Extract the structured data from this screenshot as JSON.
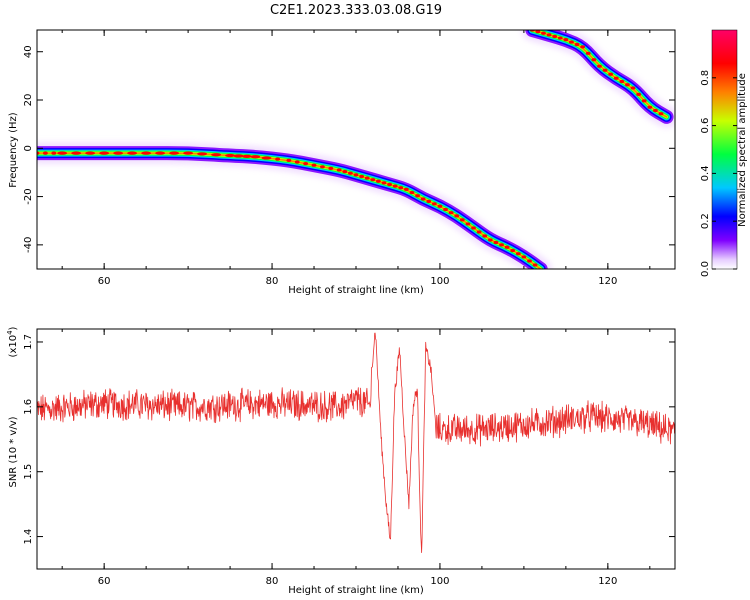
{
  "figure": {
    "title": "C2E1.2023.333.03.08.G19"
  },
  "chart_data": [
    {
      "type": "heatmap",
      "panel": "spectrogram",
      "xlabel": "Height of straight line (km)",
      "ylabel": "Frequency (Hz)",
      "xlim": [
        52,
        128
      ],
      "ylim": [
        -50,
        49
      ],
      "xticks": [
        60,
        80,
        100,
        120
      ],
      "yticks": [
        -40,
        -20,
        0,
        20,
        40
      ],
      "colorbar": {
        "label": "Normalized spectral amplitude",
        "range": [
          0,
          1
        ],
        "ticks": [
          "0.0",
          "0.2",
          "0.4",
          "0.6",
          "0.8"
        ],
        "colors": [
          "#ffffff",
          "#7f00ff",
          "#0000ff",
          "#00c8ff",
          "#00ff40",
          "#c8ff00",
          "#ff8000",
          "#ff0000",
          "#ff0066"
        ]
      },
      "tracks": [
        {
          "name": "",
          "points": [
            [
              52,
              -2
            ],
            [
              55,
              -2
            ],
            [
              60,
              -2
            ],
            [
              65,
              -2
            ],
            [
              70,
              -2
            ],
            [
              75,
              -3
            ],
            [
              78,
              -3.5
            ],
            [
              82,
              -5
            ],
            [
              85,
              -7
            ],
            [
              88,
              -9
            ],
            [
              90,
              -11
            ],
            [
              92,
              -13
            ],
            [
              94,
              -15
            ],
            [
              96,
              -17
            ],
            [
              98,
              -21
            ],
            [
              100,
              -24
            ],
            [
              102,
              -28
            ],
            [
              104,
              -33
            ],
            [
              106,
              -38
            ],
            [
              108,
              -41
            ],
            [
              110,
              -45
            ],
            [
              112,
              -50
            ]
          ]
        },
        {
          "name": "",
          "points": [
            [
              111,
              49
            ],
            [
              113,
              47
            ],
            [
              115,
              45
            ],
            [
              117,
              42
            ],
            [
              119,
              34
            ],
            [
              121,
              29
            ],
            [
              123,
              25
            ],
            [
              125,
              17
            ],
            [
              127,
              13
            ]
          ]
        }
      ]
    },
    {
      "type": "line",
      "panel": "snr",
      "xlabel": "Height of straight line (km)",
      "ylabel": "SNR (10 * v/v)",
      "y_multiplier": "(x10",
      "y_multiplier_exp": "4",
      "y_multiplier_close": ")",
      "xlim": [
        52,
        128
      ],
      "ylim": [
        1.35,
        1.72
      ],
      "xticks": [
        60,
        80,
        100,
        120
      ],
      "yticks": [
        1.4,
        1.5,
        1.6,
        1.7
      ],
      "color": "#e8302e",
      "baseline": [
        [
          52,
          1.595
        ],
        [
          60,
          1.605
        ],
        [
          70,
          1.6
        ],
        [
          80,
          1.605
        ],
        [
          88,
          1.6
        ],
        [
          90,
          1.61
        ],
        [
          100,
          1.565
        ],
        [
          105,
          1.565
        ],
        [
          112,
          1.575
        ],
        [
          118,
          1.585
        ],
        [
          124,
          1.575
        ],
        [
          128,
          1.56
        ]
      ],
      "noise_amplitude": 0.02,
      "features": [
        {
          "x": 91.8,
          "y": 1.65
        },
        {
          "x": 92.3,
          "y": 1.72
        },
        {
          "x": 93.0,
          "y": 1.55
        },
        {
          "x": 93.6,
          "y": 1.45
        },
        {
          "x": 94.1,
          "y": 1.39
        },
        {
          "x": 94.6,
          "y": 1.62
        },
        {
          "x": 95.2,
          "y": 1.69
        },
        {
          "x": 95.8,
          "y": 1.55
        },
        {
          "x": 96.3,
          "y": 1.45
        },
        {
          "x": 96.8,
          "y": 1.6
        },
        {
          "x": 97.3,
          "y": 1.63
        },
        {
          "x": 97.8,
          "y": 1.36
        },
        {
          "x": 98.3,
          "y": 1.69
        },
        {
          "x": 98.9,
          "y": 1.66
        },
        {
          "x": 99.5,
          "y": 1.57
        }
      ]
    }
  ]
}
